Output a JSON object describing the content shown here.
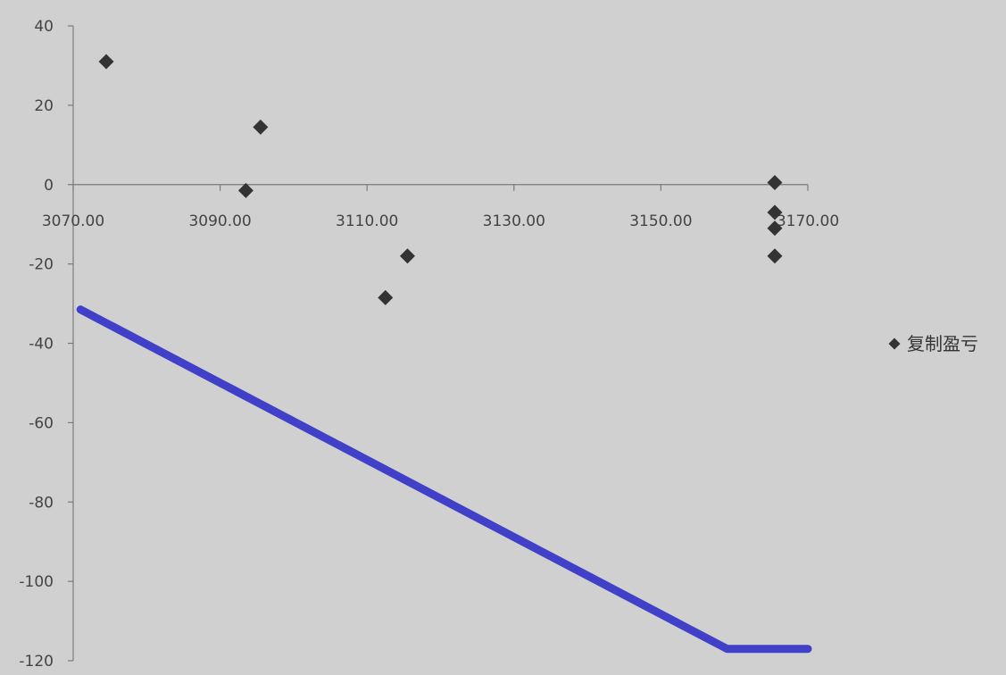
{
  "chart_data": {
    "type": "scatter",
    "xlim": [
      3070,
      3170
    ],
    "ylim": [
      -120,
      40
    ],
    "x_ticks": [
      "3070.00",
      "3090.00",
      "3110.00",
      "3130.00",
      "3150.00",
      "3170.00"
    ],
    "y_ticks": [
      "40",
      "20",
      "0",
      "-20",
      "-40",
      "-60",
      "-80",
      "-100",
      "-120"
    ],
    "grid": false,
    "legend_position": "right",
    "series": [
      {
        "name": "复制盈亏",
        "kind": "scatter",
        "marker": "diamond",
        "color": "#333333",
        "points": [
          {
            "x": 3074.5,
            "y": 31
          },
          {
            "x": 3093.5,
            "y": -1.5
          },
          {
            "x": 3095.5,
            "y": 14.5
          },
          {
            "x": 3112.5,
            "y": -28.5
          },
          {
            "x": 3115.5,
            "y": -18
          },
          {
            "x": 3165.5,
            "y": 0.5
          },
          {
            "x": 3165.5,
            "y": -7
          },
          {
            "x": 3165.5,
            "y": -11
          },
          {
            "x": 3165.5,
            "y": -18
          }
        ]
      },
      {
        "kind": "line",
        "color": "#4040c8",
        "points": [
          {
            "x": 3071,
            "y": -31.5
          },
          {
            "x": 3159,
            "y": -117
          },
          {
            "x": 3170,
            "y": -117
          }
        ]
      }
    ]
  }
}
